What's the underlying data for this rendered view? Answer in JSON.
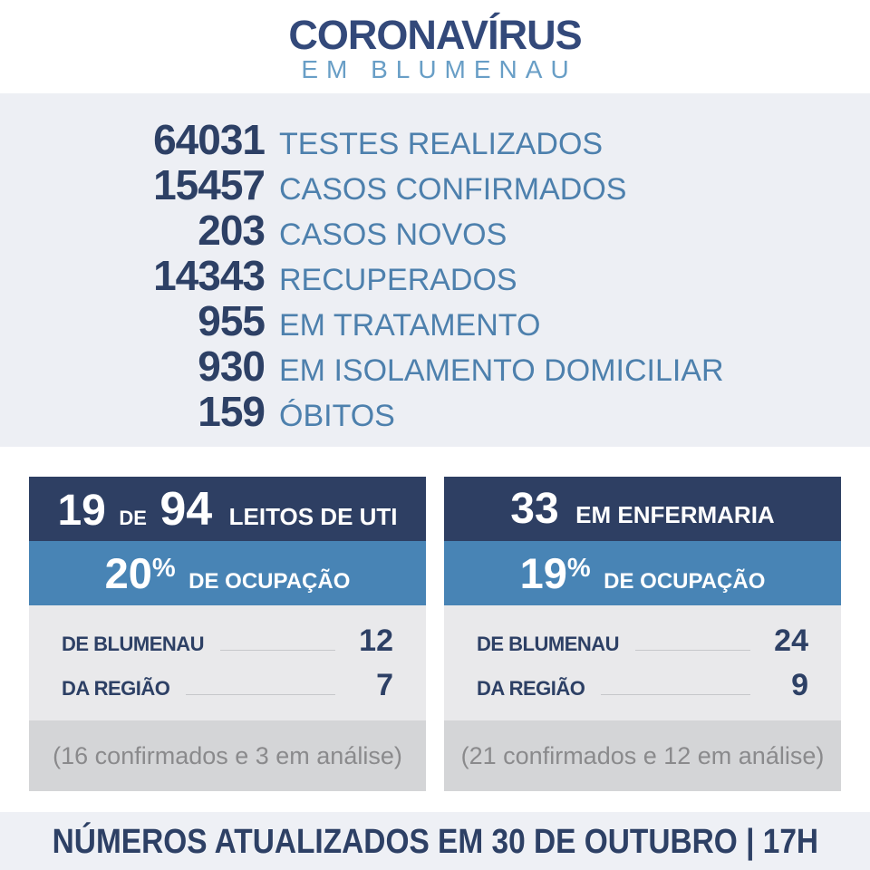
{
  "logo": {
    "title": "CORONAVÍRUS",
    "subtitle": "EM BLUMENAU"
  },
  "stats": [
    {
      "value": "64031",
      "label": "TESTES REALIZADOS"
    },
    {
      "value": "15457",
      "label": "CASOS CONFIRMADOS"
    },
    {
      "value": "203",
      "label": "CASOS NOVOS"
    },
    {
      "value": "14343",
      "label": "RECUPERADOS"
    },
    {
      "value": "955",
      "label": "EM TRATAMENTO"
    },
    {
      "value": "930",
      "label": "EM ISOLAMENTO DOMICILIAR"
    },
    {
      "value": "159",
      "label": "ÓBITOS"
    }
  ],
  "cards": [
    {
      "header": {
        "value1": "19",
        "connector": "DE",
        "value2": "94",
        "label": "LEITOS DE UTI"
      },
      "occupancy": {
        "percent": "20",
        "percent_sign": "%",
        "label": "DE OCUPAÇÃO"
      },
      "rows": [
        {
          "label": "DE BLUMENAU",
          "value": "12"
        },
        {
          "label": "DA REGIÃO",
          "value": "7"
        }
      ],
      "note": "(16 confirmados e 3 em análise)"
    },
    {
      "header": {
        "value1": "33",
        "label": "EM ENFERMARIA"
      },
      "occupancy": {
        "percent": "19",
        "percent_sign": "%",
        "label": "DE OCUPAÇÃO"
      },
      "rows": [
        {
          "label": "DE BLUMENAU",
          "value": "24"
        },
        {
          "label": "DA REGIÃO",
          "value": "9"
        }
      ],
      "note": "(21 confirmados e 12 em análise)"
    }
  ],
  "footer": {
    "text": "NÚMEROS ATUALIZADOS EM 30 DE OUTUBRO | 17H"
  },
  "colors": {
    "navy": "#2e3f63",
    "number_navy": "#2d4065",
    "label_blue": "#4d80ad",
    "logo_navy": "#33497a",
    "logo_light_blue": "#689ec6",
    "band_blue": "#4884b5",
    "stats_bg": "#edeff4",
    "card_body_gray": "#e9e9eb",
    "card_note_gray": "#d4d5d7",
    "note_text_gray": "#8a8a8c",
    "footer_bg": "#eef0f5"
  }
}
